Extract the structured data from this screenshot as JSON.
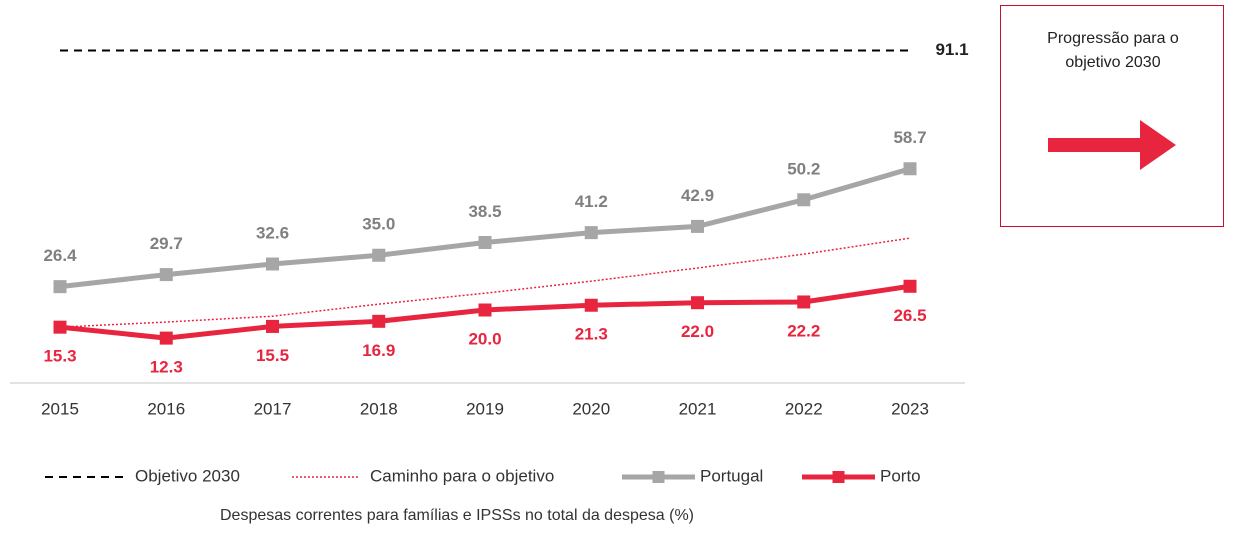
{
  "chart_data": {
    "type": "line",
    "categories": [
      "2015",
      "2016",
      "2017",
      "2018",
      "2019",
      "2020",
      "2021",
      "2022",
      "2023"
    ],
    "ylim": [
      0,
      100
    ],
    "reference_line": {
      "name": "Objetivo 2030",
      "value": 91.1,
      "color": "#000000",
      "style": "dashed"
    },
    "series": [
      {
        "name": "Caminho para o objetivo",
        "color": "#e8253f",
        "style": "dotted",
        "values": [
          15.3,
          16.7,
          18.3,
          21.6,
          24.6,
          27.9,
          31.5,
          35.3,
          39.7
        ]
      },
      {
        "name": "Portugal",
        "color": "#a6a6a6",
        "style": "solid",
        "label_color": "#808080",
        "label_side": "above",
        "values": [
          26.4,
          29.7,
          32.6,
          35.0,
          38.5,
          41.2,
          42.9,
          50.2,
          58.7
        ],
        "value_labels": [
          "26.4",
          "29.7",
          "32.6",
          "35.0",
          "38.5",
          "41.2",
          "42.9",
          "50.2",
          "58.7"
        ]
      },
      {
        "name": "Porto",
        "color": "#e8253f",
        "style": "solid",
        "label_color": "#e8253f",
        "label_side": "below",
        "values": [
          15.3,
          12.3,
          15.5,
          16.9,
          20.0,
          21.3,
          22.0,
          22.2,
          26.5
        ],
        "value_labels": [
          "15.3",
          "12.3",
          "15.5",
          "16.9",
          "20.0",
          "21.3",
          "22.0",
          "22.2",
          "26.5"
        ]
      }
    ],
    "annotation": "Progressão para o objetivo 2030",
    "x_label": "Despesas correntes para famílias e IPSSs no total da despesa (%)"
  }
}
